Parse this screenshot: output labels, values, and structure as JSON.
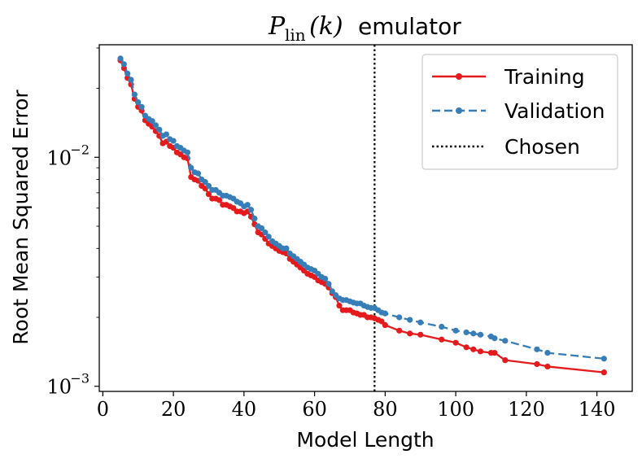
{
  "chart_data": {
    "type": "line",
    "title": {
      "math_main": "P",
      "math_sub": "lin",
      "math_arg": "(k)",
      "text": "emulator"
    },
    "xlabel": "Model Length",
    "ylabel": "Root Mean Squared Error",
    "xlim": [
      -1,
      150
    ],
    "ylim": [
      0.00095,
      0.031
    ],
    "yscale": "log",
    "xticks": [
      {
        "value": 0,
        "label": "0"
      },
      {
        "value": 20,
        "label": "20"
      },
      {
        "value": 40,
        "label": "40"
      },
      {
        "value": 60,
        "label": "60"
      },
      {
        "value": 80,
        "label": "80"
      },
      {
        "value": 100,
        "label": "100"
      },
      {
        "value": 120,
        "label": "120"
      },
      {
        "value": 140,
        "label": "140"
      }
    ],
    "yticks": [
      {
        "value": 0.001,
        "base": "10",
        "exp": "−3"
      },
      {
        "value": 0.01,
        "base": "10",
        "exp": "−2"
      }
    ],
    "chosen_x": 77,
    "legend_position": "top-right",
    "colors": {
      "training": "#e41a1c",
      "validation": "#377eb8",
      "chosen": "#000000"
    },
    "series": [
      {
        "name": "Training",
        "style": "solid",
        "x": [
          5,
          6,
          7,
          8,
          9,
          10,
          11,
          12,
          13,
          14,
          15,
          16,
          17,
          18,
          19,
          20,
          21,
          22,
          23,
          24,
          25,
          26,
          27,
          28,
          29,
          30,
          31,
          32,
          33,
          34,
          35,
          36,
          37,
          38,
          39,
          40,
          41,
          42,
          43,
          44,
          45,
          46,
          47,
          48,
          49,
          50,
          51,
          52,
          53,
          54,
          55,
          56,
          57,
          58,
          59,
          60,
          61,
          62,
          63,
          64,
          65,
          66,
          67,
          68,
          69,
          70,
          71,
          72,
          73,
          74,
          75,
          76,
          77,
          78,
          79,
          80,
          84,
          87,
          90,
          96,
          100,
          103,
          105,
          107,
          110,
          111,
          114,
          123,
          126,
          142
        ],
        "y": [
          0.0265,
          0.0245,
          0.0222,
          0.0208,
          0.018,
          0.0166,
          0.016,
          0.0145,
          0.014,
          0.0136,
          0.013,
          0.0124,
          0.0115,
          0.0117,
          0.0112,
          0.011,
          0.0105,
          0.0103,
          0.01,
          0.0099,
          0.0082,
          0.008,
          0.0079,
          0.0075,
          0.0073,
          0.0069,
          0.0066,
          0.0066,
          0.0065,
          0.0062,
          0.0062,
          0.0061,
          0.006,
          0.0058,
          0.0058,
          0.0057,
          0.0058,
          0.0055,
          0.0051,
          0.0047,
          0.0046,
          0.0044,
          0.0042,
          0.0041,
          0.004,
          0.0039,
          0.00385,
          0.0038,
          0.0036,
          0.0035,
          0.0034,
          0.0033,
          0.0032,
          0.0031,
          0.00305,
          0.003,
          0.0029,
          0.00285,
          0.0028,
          0.0027,
          0.00255,
          0.00245,
          0.00225,
          0.00215,
          0.00215,
          0.00215,
          0.0021,
          0.00208,
          0.00205,
          0.00205,
          0.002,
          0.002,
          0.00198,
          0.00195,
          0.00192,
          0.00185,
          0.00175,
          0.0017,
          0.00168,
          0.0016,
          0.00155,
          0.00148,
          0.00145,
          0.00142,
          0.0014,
          0.0014,
          0.0013,
          0.00125,
          0.00122,
          0.00115
        ]
      },
      {
        "name": "Validation",
        "style": "dashed",
        "x": [
          5,
          6,
          7,
          8,
          9,
          10,
          11,
          12,
          13,
          14,
          15,
          16,
          17,
          18,
          19,
          20,
          21,
          22,
          23,
          24,
          25,
          26,
          27,
          28,
          29,
          30,
          31,
          32,
          33,
          34,
          35,
          36,
          37,
          38,
          39,
          40,
          41,
          42,
          43,
          44,
          45,
          46,
          47,
          48,
          49,
          50,
          51,
          52,
          53,
          54,
          55,
          56,
          57,
          58,
          59,
          60,
          61,
          62,
          63,
          64,
          65,
          66,
          67,
          68,
          69,
          70,
          71,
          72,
          73,
          74,
          75,
          76,
          77,
          78,
          79,
          80,
          84,
          87,
          90,
          96,
          100,
          103,
          105,
          107,
          110,
          111,
          114,
          123,
          126,
          142
        ],
        "y": [
          0.027,
          0.0255,
          0.0232,
          0.0218,
          0.0188,
          0.0174,
          0.0166,
          0.0152,
          0.0147,
          0.0144,
          0.0138,
          0.0132,
          0.0124,
          0.0126,
          0.012,
          0.0118,
          0.0112,
          0.011,
          0.0107,
          0.0105,
          0.009,
          0.0086,
          0.0085,
          0.008,
          0.0078,
          0.0075,
          0.0072,
          0.0072,
          0.007,
          0.0068,
          0.0068,
          0.0067,
          0.0066,
          0.0064,
          0.0063,
          0.0061,
          0.0062,
          0.0059,
          0.0054,
          0.005,
          0.0049,
          0.0047,
          0.0045,
          0.0043,
          0.0042,
          0.0041,
          0.004,
          0.004,
          0.0038,
          0.0037,
          0.0036,
          0.0035,
          0.0034,
          0.0033,
          0.00325,
          0.0032,
          0.0031,
          0.003,
          0.00295,
          0.0028,
          0.0026,
          0.0025,
          0.00242,
          0.00238,
          0.00238,
          0.00235,
          0.00232,
          0.0023,
          0.0023,
          0.00225,
          0.00222,
          0.0022,
          0.0022,
          0.00215,
          0.0021,
          0.00208,
          0.002,
          0.00195,
          0.0019,
          0.00182,
          0.00175,
          0.00172,
          0.0017,
          0.00168,
          0.00165,
          0.00162,
          0.00158,
          0.00145,
          0.0014,
          0.00132
        ]
      }
    ]
  },
  "legend": {
    "training": "Training",
    "validation": "Validation",
    "chosen": "Chosen"
  }
}
